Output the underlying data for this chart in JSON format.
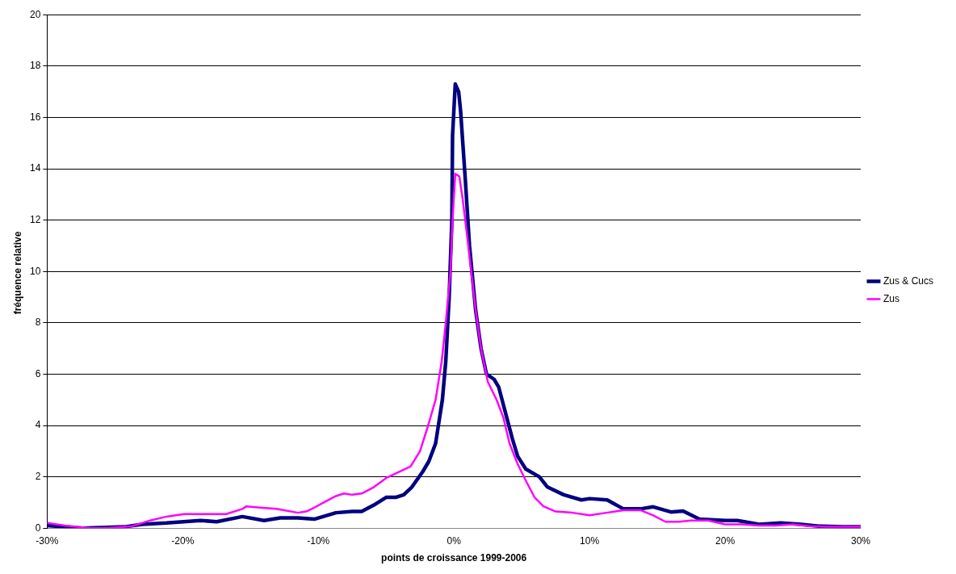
{
  "chart_data": {
    "type": "line",
    "xlabel": "points de croissance 1999-2006",
    "ylabel": "fréquence relative",
    "xlim": [
      -30,
      30
    ],
    "xticks": [
      {
        "value": -30,
        "label": "-30%"
      },
      {
        "value": -20,
        "label": "-20%"
      },
      {
        "value": -10,
        "label": "-10%"
      },
      {
        "value": 0,
        "label": "0%"
      },
      {
        "value": 10,
        "label": "10%"
      },
      {
        "value": 20,
        "label": "20%"
      },
      {
        "value": 30,
        "label": "30%"
      }
    ],
    "ylim": [
      0,
      20
    ],
    "yticks": [
      0,
      2,
      4,
      6,
      8,
      10,
      12,
      14,
      16,
      18,
      20
    ],
    "grid": "y",
    "legend": "right",
    "marker": "none",
    "line_style": "solid",
    "series": [
      {
        "name": "Zus & Cucs",
        "color": "#000080",
        "x": [
          -30,
          -27.4,
          -24.3,
          -23,
          -21.2,
          -18.7,
          -17.5,
          -15.6,
          -14,
          -12.8,
          -11.5,
          -10.3,
          -8.7,
          -7.5,
          -6.8,
          -5.9,
          -5,
          -4.3,
          -3.7,
          -3.1,
          -2.3,
          -1.85,
          -1.35,
          -0.85,
          -0.6,
          -0.35,
          -0.15,
          -0.1,
          0.1,
          0.35,
          0.5,
          0.85,
          1.15,
          1.6,
          2,
          2.4,
          2.96,
          3.3,
          3.8,
          4.3,
          4.7,
          5.3,
          6.3,
          6.9,
          8.1,
          9.4,
          10,
          11.3,
          12.5,
          13.75,
          14.7,
          16,
          16.9,
          18.1,
          20,
          20.9,
          22.5,
          24.1,
          25.6,
          26.9,
          28.7,
          30
        ],
        "values": [
          0.1,
          0,
          0.05,
          0.15,
          0.2,
          0.3,
          0.25,
          0.45,
          0.3,
          0.4,
          0.4,
          0.35,
          0.6,
          0.65,
          0.65,
          0.9,
          1.2,
          1.2,
          1.3,
          1.6,
          2.2,
          2.6,
          3.3,
          5,
          6.5,
          9,
          12,
          15.3,
          17.3,
          17,
          16.2,
          13.5,
          11,
          8.5,
          7,
          6,
          5.8,
          5.5,
          4.5,
          3.5,
          2.8,
          2.3,
          2,
          1.6,
          1.3,
          1.1,
          1.15,
          1.1,
          0.75,
          0.75,
          0.83,
          0.63,
          0.67,
          0.35,
          0.3,
          0.3,
          0.15,
          0.2,
          0.15,
          0.08,
          0.05,
          0.05
        ]
      },
      {
        "name": "Zus",
        "color": "#ff00ff",
        "x": [
          -30,
          -28.7,
          -26.8,
          -25.6,
          -24.3,
          -23.7,
          -22.4,
          -21.2,
          -19.9,
          -18.7,
          -17.5,
          -16.8,
          -15.6,
          -15.3,
          -14.3,
          -13.1,
          -11.5,
          -10.9,
          -10.3,
          -9.6,
          -8.7,
          -8.1,
          -7.5,
          -6.8,
          -5.9,
          -5,
          -4,
          -3.2,
          -2.5,
          -1.9,
          -1.35,
          -0.9,
          -0.6,
          -0.25,
          -0.1,
          0.1,
          0.4,
          0.65,
          0.95,
          1.6,
          2,
          2.5,
          3.15,
          3.65,
          4.1,
          4.7,
          5.35,
          5.95,
          6.6,
          7.5,
          8.75,
          10,
          11.25,
          12.5,
          13.75,
          14.7,
          15.6,
          16.6,
          17.5,
          18.75,
          20,
          21.25,
          22.5,
          23.7,
          25,
          26.2,
          27.5,
          30
        ],
        "values": [
          0.2,
          0.1,
          0,
          0,
          0.05,
          0.08,
          0.3,
          0.45,
          0.55,
          0.55,
          0.55,
          0.55,
          0.75,
          0.85,
          0.8,
          0.75,
          0.6,
          0.65,
          0.8,
          1,
          1.25,
          1.35,
          1.3,
          1.35,
          1.6,
          1.95,
          2.2,
          2.4,
          3,
          4,
          5,
          6.5,
          8,
          10,
          12,
          13.8,
          13.7,
          12.8,
          11.5,
          8.5,
          7,
          5.7,
          5,
          4.3,
          3.3,
          2.5,
          1.8,
          1.2,
          0.85,
          0.65,
          0.6,
          0.5,
          0.6,
          0.7,
          0.7,
          0.5,
          0.25,
          0.25,
          0.3,
          0.3,
          0.15,
          0.15,
          0.1,
          0.1,
          0.15,
          0.08,
          0.05,
          0.05
        ]
      }
    ]
  }
}
